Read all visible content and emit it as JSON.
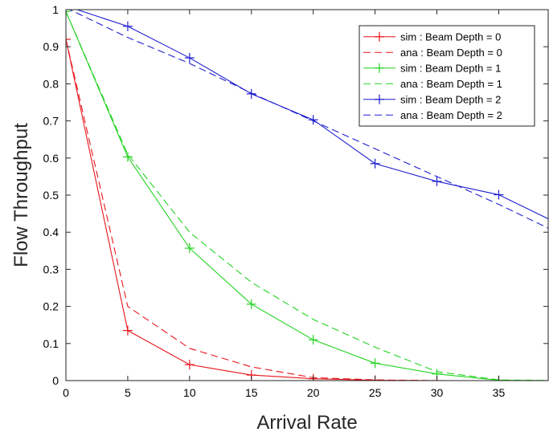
{
  "chart_data": {
    "type": "line",
    "title": "",
    "xlabel": "Arrival Rate",
    "ylabel": "Flow Throughput",
    "xlim": [
      0,
      39
    ],
    "ylim": [
      0,
      1
    ],
    "xticks": [
      0,
      5,
      10,
      15,
      20,
      25,
      30,
      35
    ],
    "yticks": [
      0,
      0.1,
      0.2,
      0.3,
      0.4,
      0.5,
      0.6,
      0.7,
      0.8,
      0.9,
      1
    ],
    "xtick_labels": [
      "0",
      "5",
      "10",
      "15",
      "20",
      "25",
      "30",
      "35"
    ],
    "ytick_labels": [
      "0",
      "0.1",
      "0.2",
      "0.3",
      "0.4",
      "0.5",
      "0.6",
      "0.7",
      "0.8",
      "0.9",
      "1"
    ],
    "grid": false,
    "legend_position": "top-right",
    "series": [
      {
        "name": "sim : Beam Depth = 0",
        "color": "#e8141b",
        "style": "solid",
        "marker": "plus",
        "x": [
          0,
          5,
          10,
          15,
          20,
          25,
          30,
          35,
          40
        ],
        "y": [
          0.92,
          0.135,
          0.043,
          0.015,
          0.005,
          0.001,
          0.0,
          0.0,
          0.0
        ]
      },
      {
        "name": "ana : Beam Depth = 0",
        "color": "#e8141b",
        "style": "dashed",
        "marker": "none",
        "x": [
          0,
          5,
          10,
          15,
          20,
          25,
          30,
          35,
          40
        ],
        "y": [
          0.92,
          0.2,
          0.087,
          0.037,
          0.008,
          0.002,
          0.0,
          0.0,
          0.0
        ]
      },
      {
        "name": "sim : Beam Depth = 1",
        "color": "#23d321",
        "style": "solid",
        "marker": "plus",
        "x": [
          0,
          5,
          10,
          15,
          20,
          25,
          30,
          35,
          40
        ],
        "y": [
          0.995,
          0.603,
          0.357,
          0.206,
          0.11,
          0.047,
          0.018,
          0.001,
          0.0
        ]
      },
      {
        "name": "ana : Beam Depth = 1",
        "color": "#23d321",
        "style": "dashed",
        "marker": "none",
        "x": [
          0,
          5,
          10,
          15,
          20,
          25,
          30,
          35,
          40
        ],
        "y": [
          0.995,
          0.61,
          0.4,
          0.265,
          0.165,
          0.09,
          0.024,
          0.002,
          0.0
        ]
      },
      {
        "name": "sim : Beam Depth = 2",
        "color": "#1f1fd0",
        "style": "solid",
        "marker": "plus",
        "x": [
          0,
          5,
          10,
          15,
          20,
          25,
          30,
          35,
          40
        ],
        "y": [
          1.01,
          0.955,
          0.87,
          0.773,
          0.703,
          0.585,
          0.537,
          0.501,
          0.42
        ]
      },
      {
        "name": "ana : Beam Depth = 2",
        "color": "#1f1fd0",
        "style": "dashed",
        "marker": "none",
        "x": [
          0,
          5,
          10,
          15,
          20,
          25,
          30,
          35,
          40
        ],
        "y": [
          1.005,
          0.925,
          0.855,
          0.775,
          0.7,
          0.625,
          0.55,
          0.475,
          0.395
        ]
      }
    ]
  }
}
